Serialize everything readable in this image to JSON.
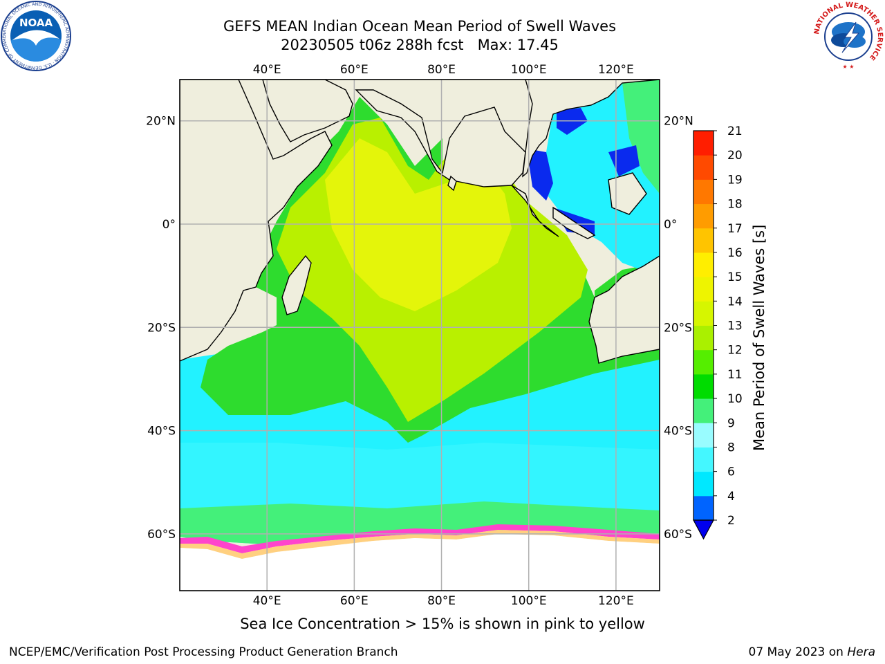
{
  "title": "GEFS MEAN Indian Ocean Mean Period of Swell Waves",
  "subtitle": "20230505 t06z 288h fcst   Max: 17.45",
  "map": {
    "lon_ticks": [
      "40°E",
      "60°E",
      "80°E",
      "100°E",
      "120°E"
    ],
    "lat_ticks": [
      "20°N",
      "0°",
      "20°S",
      "40°S",
      "60°S"
    ],
    "lon_range": [
      20,
      130
    ],
    "lat_range": [
      -71,
      28
    ],
    "land_color": "#efeedd",
    "grid_color": "#b0b0b0"
  },
  "colorbar": {
    "label": "Mean Period of Swell Waves [s]",
    "ticks": [
      "2",
      "4",
      "6",
      "8",
      "9",
      "10",
      "11",
      "12",
      "13",
      "14",
      "15",
      "16",
      "17",
      "18",
      "19",
      "20",
      "21"
    ],
    "colors": [
      "#0064ff",
      "#00e8ff",
      "#44f7ff",
      "#99fcff",
      "#44f07a",
      "#00dc00",
      "#55ee00",
      "#aaf000",
      "#d6f600",
      "#eef400",
      "#ffee00",
      "#ffc400",
      "#ff9c00",
      "#ff7800",
      "#ff4a00",
      "#ff1e00"
    ],
    "extend_color": "#0000ee"
  },
  "ice_note": "Sea Ice Concentration > 15% is shown in pink to yellow",
  "footer": {
    "left": "NCEP/EMC/Verification Post Processing Product Generation Branch",
    "date": "07 May 2023 on",
    "machine": "Hera"
  },
  "logos": {
    "noaa_text": "NOAA",
    "noaa_ring": "NATIONAL OCEANIC AND ATMOSPHERIC ADMINISTRATION · U.S. DEPARTMENT OF COMMERCE ·",
    "nws_ring": "NATIONAL WEATHER SERVICE"
  }
}
